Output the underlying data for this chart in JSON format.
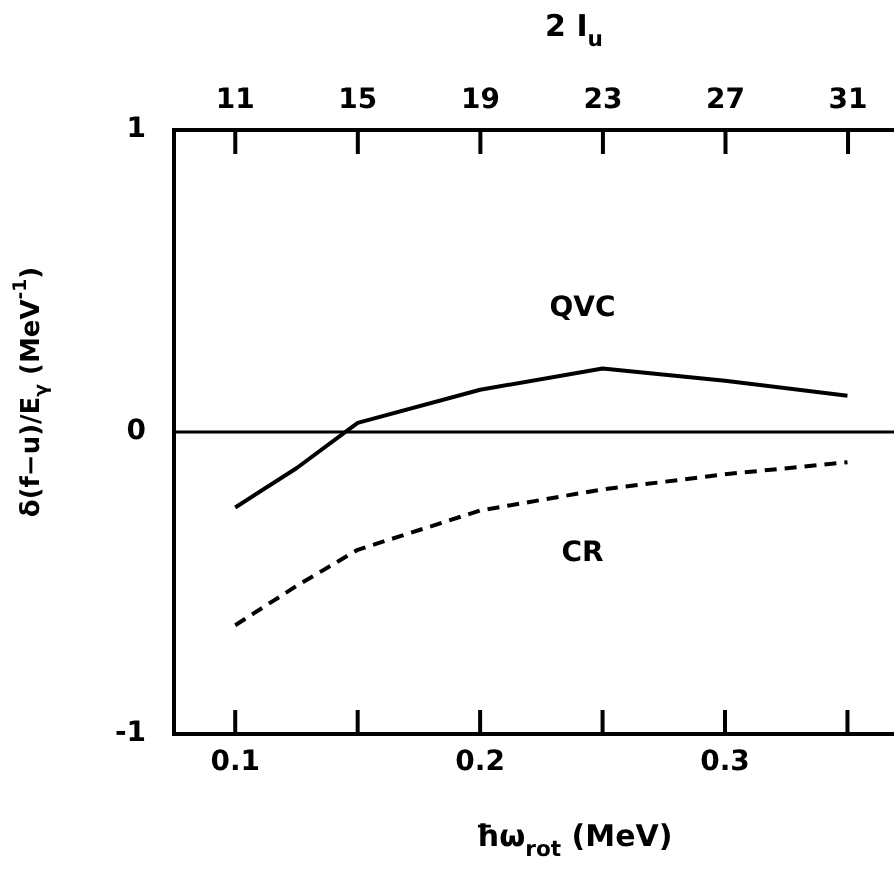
{
  "chart_data": {
    "type": "line",
    "xlabel": "ħω$_{rot}$ (MeV)",
    "ylabel": "δ(f−u)/E$_{γ}$ (MeV$^{-1}$)",
    "x2label": "2 I$_{u}$",
    "x": [
      0.1,
      0.125,
      0.15,
      0.2,
      0.25,
      0.3,
      0.35
    ],
    "series": [
      {
        "name": "QVC",
        "color": "#000000",
        "line_style": "solid",
        "values": [
          -0.25,
          -0.12,
          0.03,
          0.14,
          0.21,
          0.17,
          0.12
        ]
      },
      {
        "name": "CR",
        "color": "#000000",
        "line_style": "dashed",
        "values": [
          -0.64,
          -0.51,
          -0.39,
          -0.26,
          -0.19,
          -0.14,
          -0.1
        ]
      }
    ],
    "xlim": [
      0.075,
      0.369
    ],
    "xticks": [
      0.1,
      {
        "value": 0.15,
        "label": null
      },
      {
        "value": 0.2,
        "label": "0.2"
      },
      {
        "value": 0.25,
        "label": null
      },
      {
        "value": 0.3,
        "label": "0.3"
      },
      {
        "value": 0.35,
        "label": null
      }
    ],
    "x2lim": [
      9,
      32.5
    ],
    "x2ticks": [
      11,
      15,
      19,
      23,
      27,
      31
    ],
    "ylim": [
      -1,
      1
    ],
    "yticks": [
      -1,
      0,
      1
    ],
    "ref_lines": [
      {
        "axis": "y",
        "value": 0,
        "color": "#000000"
      }
    ],
    "grid": false,
    "legend": false,
    "marker": "none"
  }
}
